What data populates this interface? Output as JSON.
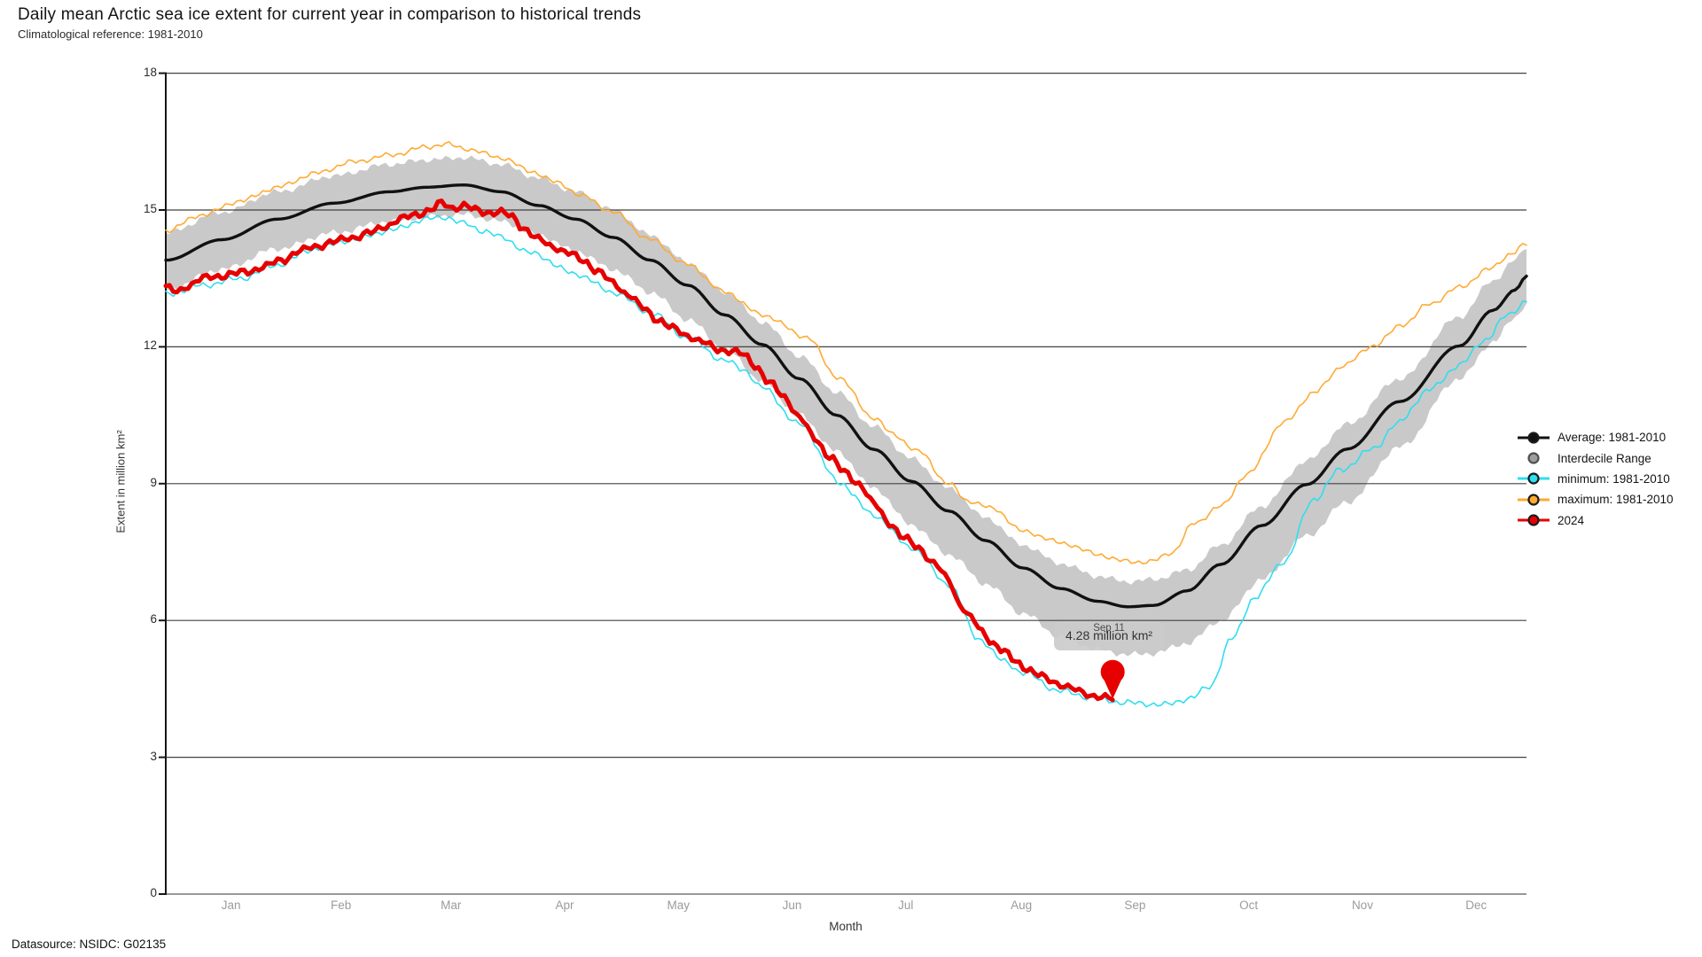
{
  "header": {
    "title": "Daily mean Arctic sea ice extent for current year in comparison to historical trends",
    "subtitle": "Climatological reference: 1981-2010"
  },
  "footer": {
    "datasource": "Datasource: NSIDC: G02135"
  },
  "axes": {
    "y_label": "Extent in million km²",
    "x_label": "Month",
    "y_ticks": [
      0,
      3,
      6,
      9,
      12,
      15,
      18
    ],
    "months": [
      "Jan",
      "Feb",
      "Mar",
      "Apr",
      "May",
      "Jun",
      "Jul",
      "Aug",
      "Sep",
      "Oct",
      "Nov",
      "Dec"
    ]
  },
  "legend": {
    "items": [
      {
        "label": "Average: 1981-2010",
        "color": "#111111",
        "shape": "line-dot"
      },
      {
        "label": "Interdecile Range",
        "color": "#9e9e9e",
        "shape": "dot"
      },
      {
        "label": "minimum: 1981-2010",
        "color": "#2fdef0",
        "shape": "line-dot"
      },
      {
        "label": "maximum: 1981-2010",
        "color": "#ffaa33",
        "shape": "line-dot"
      },
      {
        "label": "2024",
        "color": "#e60000",
        "shape": "line-dot"
      }
    ]
  },
  "tooltip": {
    "date": "Sep 11",
    "value": "4.28 million km²"
  },
  "chart_data": {
    "type": "line",
    "title": "Daily mean Arctic sea ice extent for current year in comparison to historical trends",
    "x_unit": "day_of_year",
    "xlim": [
      0,
      365
    ],
    "ylim": [
      0,
      18
    ],
    "grid": "horizontal",
    "legend_position": "right",
    "band": {
      "name": "Interdecile Range",
      "color": "#c9c9c9",
      "days": [
        0,
        15,
        30,
        45,
        60,
        70,
        80,
        90,
        100,
        110,
        120,
        130,
        140,
        150,
        160,
        170,
        180,
        190,
        200,
        210,
        220,
        230,
        240,
        250,
        258,
        265,
        274,
        283,
        294,
        306,
        317,
        331,
        347,
        356,
        362,
        365
      ],
      "upper": [
        14.5,
        14.95,
        15.4,
        15.75,
        16.0,
        16.1,
        16.15,
        16.0,
        15.7,
        15.4,
        15.0,
        14.45,
        13.85,
        13.2,
        12.55,
        11.8,
        11.0,
        10.25,
        9.55,
        8.9,
        8.25,
        7.65,
        7.25,
        6.97,
        6.85,
        6.9,
        7.1,
        7.65,
        8.5,
        9.5,
        10.3,
        11.3,
        12.65,
        13.45,
        13.9,
        14.2
      ],
      "lower": [
        13.25,
        13.7,
        14.15,
        14.5,
        14.75,
        14.85,
        14.9,
        14.75,
        14.45,
        14.1,
        13.7,
        13.2,
        12.6,
        11.95,
        11.25,
        10.5,
        9.7,
        8.9,
        8.1,
        7.45,
        6.8,
        6.15,
        5.65,
        5.37,
        5.25,
        5.28,
        5.5,
        6.0,
        6.9,
        7.85,
        8.6,
        9.8,
        11.3,
        12.1,
        12.65,
        12.95
      ]
    },
    "series": [
      {
        "name": "maximum: 1981-2010",
        "color": "#ffaa33",
        "width": 1.6,
        "days": [
          0,
          10,
          20,
          30,
          40,
          50,
          60,
          70,
          75,
          80,
          90,
          98,
          105,
          112,
          120,
          130,
          140,
          150,
          160,
          172,
          180,
          190,
          195,
          202,
          210,
          215,
          222,
          230,
          241,
          250,
          257,
          264,
          270,
          276,
          283,
          290,
          300,
          308,
          316,
          324,
          332,
          339,
          347,
          355,
          361,
          365
        ],
        "values": [
          14.55,
          14.9,
          15.2,
          15.5,
          15.8,
          16.05,
          16.2,
          16.38,
          16.45,
          16.35,
          16.15,
          15.85,
          15.6,
          15.3,
          14.95,
          14.35,
          13.8,
          13.2,
          12.7,
          12.22,
          11.35,
          10.45,
          10.08,
          9.7,
          9.0,
          8.63,
          8.45,
          7.95,
          7.69,
          7.45,
          7.3,
          7.28,
          7.5,
          8.14,
          8.5,
          9.2,
          10.34,
          11.0,
          11.6,
          12.03,
          12.5,
          12.94,
          13.3,
          13.7,
          14.05,
          14.25
        ]
      },
      {
        "name": "minimum: 1981-2010",
        "color": "#2fdef0",
        "width": 1.6,
        "days": [
          0,
          10,
          20,
          30,
          40,
          50,
          60,
          70,
          75,
          80,
          85,
          90,
          98,
          110,
          120,
          130,
          140,
          150,
          155,
          160,
          170,
          181,
          190,
          200,
          210,
          218,
          225,
          230,
          240,
          250,
          257,
          262,
          268,
          275,
          280,
          286,
          292,
          300,
          308,
          315,
          324,
          330,
          339,
          347,
          354,
          360,
          365
        ],
        "values": [
          13.15,
          13.35,
          13.5,
          13.8,
          14.15,
          14.35,
          14.55,
          14.8,
          14.85,
          14.7,
          14.55,
          14.4,
          14.05,
          13.6,
          13.2,
          12.75,
          12.2,
          11.7,
          11.5,
          11.1,
          10.3,
          9.0,
          8.3,
          7.6,
          6.8,
          5.6,
          5.1,
          4.85,
          4.45,
          4.28,
          4.2,
          4.18,
          4.15,
          4.3,
          4.55,
          5.6,
          6.5,
          7.3,
          8.66,
          9.3,
          9.76,
          10.3,
          11.06,
          11.6,
          12.16,
          12.7,
          13.0
        ]
      },
      {
        "name": "Average: 1981-2010",
        "color": "#111111",
        "width": 3.4,
        "days": [
          0,
          15,
          30,
          45,
          60,
          70,
          80,
          90,
          100,
          110,
          120,
          130,
          140,
          150,
          160,
          170,
          180,
          190,
          200,
          210,
          220,
          230,
          240,
          250,
          258,
          265,
          274,
          283,
          294,
          306,
          317,
          331,
          347,
          356,
          362,
          365
        ],
        "values": [
          13.9,
          14.35,
          14.8,
          15.15,
          15.4,
          15.5,
          15.55,
          15.4,
          15.1,
          14.8,
          14.4,
          13.9,
          13.35,
          12.7,
          12.05,
          11.3,
          10.5,
          9.75,
          9.05,
          8.4,
          7.75,
          7.15,
          6.7,
          6.42,
          6.3,
          6.33,
          6.65,
          7.23,
          8.08,
          8.98,
          9.76,
          10.8,
          12.02,
          12.8,
          13.25,
          13.55
        ]
      },
      {
        "name": "2024",
        "color": "#e60000",
        "width": 5,
        "end_day": 254,
        "days": [
          0,
          3,
          6,
          10,
          14,
          18,
          22,
          26,
          31,
          36,
          40,
          45,
          50,
          55,
          59,
          63,
          67,
          71,
          74,
          77,
          80,
          83,
          86,
          90,
          93,
          96,
          100,
          104,
          108,
          112,
          116,
          120,
          124,
          128,
          132,
          136,
          140,
          144,
          148,
          152,
          155,
          158,
          162,
          166,
          170,
          174,
          178,
          182,
          186,
          190,
          194,
          198,
          202,
          206,
          210,
          213,
          216,
          219,
          222,
          225,
          228,
          231,
          234,
          237,
          240,
          243,
          246,
          249,
          252,
          254
        ],
        "values": [
          13.3,
          13.2,
          13.35,
          13.5,
          13.55,
          13.6,
          13.65,
          13.75,
          13.9,
          14.1,
          14.2,
          14.3,
          14.4,
          14.5,
          14.65,
          14.8,
          14.9,
          15.0,
          15.15,
          15.05,
          15.1,
          15.0,
          14.95,
          14.95,
          14.85,
          14.6,
          14.35,
          14.2,
          14.05,
          13.9,
          13.65,
          13.4,
          13.15,
          12.85,
          12.6,
          12.4,
          12.25,
          12.1,
          11.95,
          11.9,
          11.83,
          11.6,
          11.2,
          10.9,
          10.45,
          10.0,
          9.6,
          9.25,
          9.0,
          8.55,
          8.15,
          7.8,
          7.6,
          7.25,
          6.9,
          6.35,
          6.05,
          5.75,
          5.5,
          5.3,
          5.1,
          4.95,
          4.8,
          4.7,
          4.6,
          4.5,
          4.42,
          4.35,
          4.3,
          4.28
        ]
      }
    ],
    "annotation": {
      "day": 254,
      "value": 4.28,
      "date_label": "Sep 11",
      "value_label": "4.28 million km²",
      "marker": "red-pin"
    }
  }
}
